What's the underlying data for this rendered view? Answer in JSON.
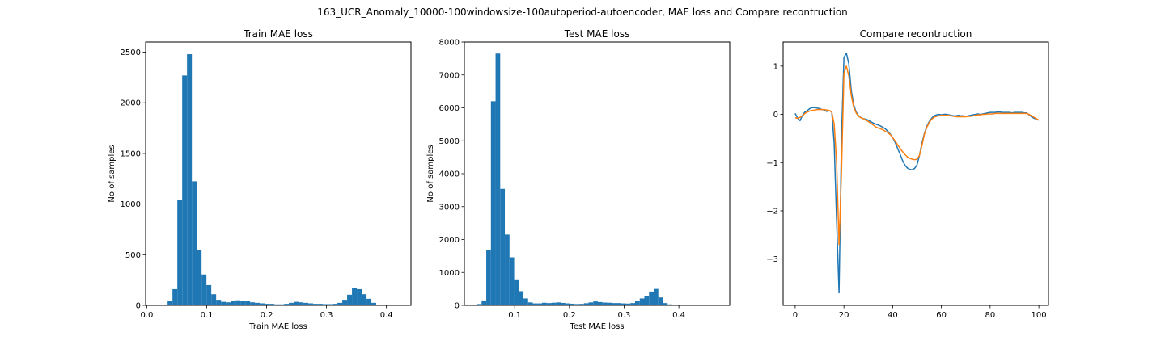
{
  "figure": {
    "suptitle": "163_UCR_Anomaly_10000-100windowsize-100autoperiod-autoencoder, MAE loss and Compare recontruction"
  },
  "colors": {
    "blue": "#1f77b4",
    "orange": "#ff7f0e"
  },
  "chart_data": [
    {
      "type": "bar",
      "title": "Train MAE loss",
      "xlabel": "Train MAE loss",
      "ylabel": "No of samples",
      "xlim": [
        -0.002,
        0.441
      ],
      "ylim": [
        0,
        2600
      ],
      "xticks": [
        "0.0",
        "0.1",
        "0.2",
        "0.3",
        "0.4"
      ],
      "xtick_values": [
        0.0,
        0.1,
        0.2,
        0.3,
        0.4
      ],
      "yticks": [
        "0",
        "500",
        "1000",
        "1500",
        "2000",
        "2500"
      ],
      "ytick_values": [
        0,
        500,
        1000,
        1500,
        2000,
        2500
      ],
      "bin_start": 0.0185,
      "bin_width": 0.0081,
      "values": [
        5,
        8,
        45,
        160,
        1040,
        2270,
        2480,
        1225,
        550,
        305,
        200,
        110,
        55,
        35,
        30,
        40,
        50,
        45,
        40,
        30,
        25,
        20,
        15,
        15,
        10,
        10,
        15,
        25,
        35,
        30,
        25,
        20,
        15,
        15,
        12,
        12,
        15,
        25,
        55,
        105,
        170,
        160,
        110,
        65,
        25
      ],
      "color": "#1f77b4"
    },
    {
      "type": "bar",
      "title": "Test MAE loss",
      "xlabel": "Test MAE loss",
      "ylabel": "No of samples",
      "xlim": [
        0.008,
        0.493
      ],
      "ylim": [
        0,
        8000
      ],
      "xticks": [
        "0.1",
        "0.2",
        "0.3",
        "0.4"
      ],
      "xtick_values": [
        0.1,
        0.2,
        0.3,
        0.4
      ],
      "yticks": [
        "0",
        "1000",
        "2000",
        "3000",
        "4000",
        "5000",
        "6000",
        "7000",
        "8000"
      ],
      "ytick_values": [
        0,
        1000,
        2000,
        3000,
        4000,
        5000,
        6000,
        7000,
        8000
      ],
      "bin_start": 0.031,
      "bin_width": 0.0085,
      "values": [
        40,
        150,
        1680,
        6200,
        7650,
        3540,
        2150,
        1460,
        790,
        430,
        210,
        90,
        60,
        60,
        80,
        70,
        80,
        90,
        75,
        60,
        50,
        40,
        45,
        65,
        90,
        120,
        100,
        85,
        80,
        70,
        70,
        60,
        55,
        70,
        130,
        210,
        290,
        420,
        500,
        240,
        70,
        30,
        20,
        15,
        10,
        5,
        5,
        5
      ],
      "color": "#1f77b4"
    },
    {
      "type": "line",
      "title": "Compare recontruction",
      "xlabel": "",
      "ylabel": "",
      "xlim": [
        -4.95,
        103.95
      ],
      "ylim": [
        -3.96,
        1.5
      ],
      "xticks": [
        "0",
        "20",
        "40",
        "60",
        "80",
        "100"
      ],
      "xtick_values": [
        0,
        20,
        40,
        60,
        80,
        100
      ],
      "yticks": [
        "1",
        "0",
        "−1",
        "−2",
        "−3"
      ],
      "ytick_values": [
        1,
        0,
        -1,
        -2,
        -3
      ],
      "x": [
        0,
        1,
        2,
        3,
        4,
        5,
        6,
        7,
        8,
        9,
        10,
        11,
        12,
        13,
        14,
        15,
        16,
        17,
        18,
        19,
        20,
        21,
        22,
        23,
        24,
        25,
        26,
        27,
        28,
        29,
        30,
        31,
        32,
        33,
        34,
        35,
        36,
        37,
        38,
        39,
        40,
        41,
        42,
        43,
        44,
        45,
        46,
        47,
        48,
        49,
        50,
        51,
        52,
        53,
        54,
        55,
        56,
        57,
        58,
        59,
        60,
        61,
        62,
        63,
        64,
        65,
        66,
        67,
        68,
        69,
        70,
        71,
        72,
        73,
        74,
        75,
        76,
        77,
        78,
        79,
        80,
        81,
        82,
        83,
        84,
        85,
        86,
        87,
        88,
        89,
        90,
        91,
        92,
        93,
        94,
        95,
        96,
        97,
        98,
        99,
        100
      ],
      "series": [
        {
          "color": "#1f77b4",
          "values": [
            0.02,
            -0.08,
            -0.13,
            -0.02,
            0.05,
            0.08,
            0.12,
            0.14,
            0.14,
            0.13,
            0.12,
            0.1,
            0.09,
            0.06,
            0.08,
            0.05,
            -0.6,
            -2.2,
            -3.7,
            -0.5,
            1.18,
            1.27,
            1.05,
            0.5,
            0.2,
            0.05,
            -0.03,
            -0.07,
            -0.09,
            -0.1,
            -0.12,
            -0.15,
            -0.18,
            -0.2,
            -0.22,
            -0.24,
            -0.27,
            -0.3,
            -0.35,
            -0.41,
            -0.48,
            -0.58,
            -0.7,
            -0.82,
            -0.95,
            -1.05,
            -1.11,
            -1.14,
            -1.15,
            -1.12,
            -1.05,
            -0.85,
            -0.6,
            -0.4,
            -0.25,
            -0.15,
            -0.08,
            -0.03,
            -0.01,
            0.0,
            -0.01,
            0.0,
            0.0,
            -0.01,
            -0.02,
            -0.03,
            -0.03,
            -0.02,
            -0.03,
            -0.03,
            -0.04,
            -0.03,
            -0.02,
            -0.01,
            0.0,
            0.01,
            0.0,
            0.01,
            0.02,
            0.03,
            0.04,
            0.04,
            0.04,
            0.05,
            0.05,
            0.04,
            0.04,
            0.04,
            0.04,
            0.03,
            0.04,
            0.04,
            0.04,
            0.04,
            0.03,
            0.03,
            -0.01,
            -0.05,
            -0.08,
            -0.1,
            -0.12
          ]
        },
        {
          "color": "#ff7f0e",
          "values": [
            -0.07,
            -0.08,
            -0.06,
            -0.03,
            0.02,
            0.05,
            0.07,
            0.08,
            0.09,
            0.1,
            0.1,
            0.1,
            0.1,
            0.09,
            0.08,
            0.05,
            -0.2,
            -1.0,
            -2.7,
            -1.2,
            0.85,
            1.0,
            0.8,
            0.4,
            0.15,
            0.03,
            -0.04,
            -0.07,
            -0.09,
            -0.12,
            -0.15,
            -0.18,
            -0.22,
            -0.26,
            -0.28,
            -0.3,
            -0.32,
            -0.35,
            -0.38,
            -0.42,
            -0.48,
            -0.55,
            -0.63,
            -0.7,
            -0.77,
            -0.83,
            -0.88,
            -0.91,
            -0.93,
            -0.94,
            -0.93,
            -0.85,
            -0.65,
            -0.42,
            -0.27,
            -0.17,
            -0.1,
            -0.06,
            -0.04,
            -0.03,
            -0.02,
            -0.02,
            -0.02,
            -0.02,
            -0.03,
            -0.04,
            -0.05,
            -0.05,
            -0.05,
            -0.05,
            -0.05,
            -0.04,
            -0.04,
            -0.03,
            -0.02,
            -0.01,
            -0.01,
            0.0,
            0.0,
            0.01,
            0.01,
            0.01,
            0.02,
            0.02,
            0.02,
            0.02,
            0.02,
            0.02,
            0.02,
            0.02,
            0.02,
            0.02,
            0.02,
            0.02,
            0.02,
            0.02,
            0.0,
            -0.03,
            -0.06,
            -0.09,
            -0.12
          ]
        }
      ]
    }
  ]
}
